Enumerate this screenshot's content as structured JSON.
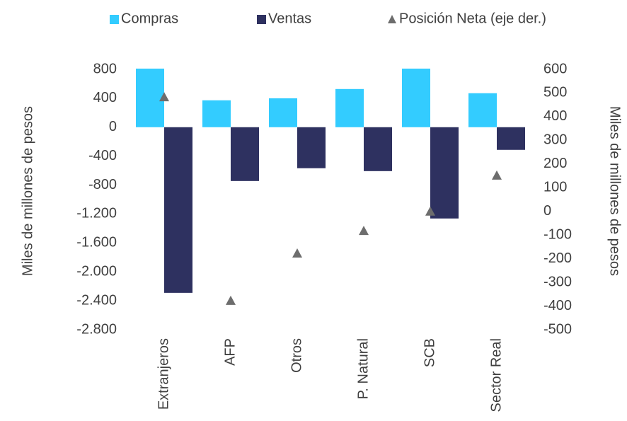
{
  "chart_data": {
    "type": "bar",
    "categories": [
      "Extranjeros",
      "AFP",
      "Otros",
      "P. Natural",
      "SCB",
      "Sector Real"
    ],
    "series": [
      {
        "name": "Compras",
        "color": "#33ccff",
        "values": [
          810,
          372,
          400,
          528,
          810,
          470
        ]
      },
      {
        "name": "Ventas",
        "color": "#2e3160",
        "values": [
          -2290,
          -744,
          -567,
          -607,
          -1262,
          -313
        ]
      },
      {
        "name": "Posición Neta (eje der.)",
        "color": "#6d6d6d",
        "axis": "y2",
        "marker": "triangle",
        "values": [
          483,
          -377,
          -177,
          -82,
          0,
          152
        ]
      }
    ],
    "ylabel": "Miles de millones de pesos",
    "y2label": "Miles de millones de pesos",
    "ylim": [
      -2800,
      800
    ],
    "yticks": [
      {
        "value": -2800,
        "label": "-2.800"
      },
      {
        "value": -2400,
        "label": "-2.400"
      },
      {
        "value": -2000,
        "label": "-2.000"
      },
      {
        "value": -1600,
        "label": "-1.600"
      },
      {
        "value": -1200,
        "label": "-1.200"
      },
      -800,
      -400,
      0,
      400,
      800
    ],
    "y2lim": [
      -500,
      600
    ],
    "y2ticks": [
      -500,
      -400,
      -300,
      -200,
      -100,
      0,
      100,
      200,
      300,
      400,
      500,
      600
    ],
    "legend": "top",
    "grid": false
  }
}
